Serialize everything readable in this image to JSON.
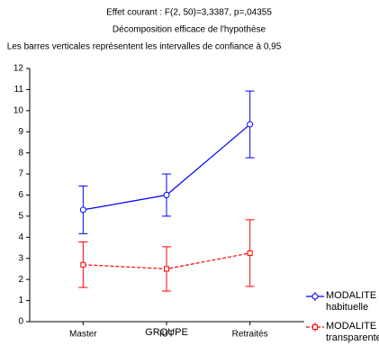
{
  "chart_data": {
    "type": "line",
    "title": "Effet courant : F(2, 50)=3,3387, p=,04355",
    "subtitle": "Décomposition efficace de l'hypothèse",
    "annotation": "Les barres verticales représentent les intervalles de confiance à 0,95",
    "x_label": "GROUPE",
    "categories": [
      "Master",
      "IUT",
      "Retraités"
    ],
    "series": [
      {
        "name": "MODALITE habituelle",
        "color": "#0000ff",
        "dashed": false,
        "marker": "circle",
        "values": [
          5.3,
          6.0,
          9.35
        ],
        "errors": [
          1.13,
          1.0,
          1.58
        ]
      },
      {
        "name": "MODALITE transparente",
        "color": "#ff0000",
        "dashed": true,
        "marker": "square",
        "values": [
          2.7,
          2.5,
          3.25
        ],
        "errors": [
          1.08,
          1.05,
          1.58
        ]
      }
    ],
    "ylim": [
      0,
      12
    ],
    "yticks": [
      0,
      1,
      2,
      3,
      4,
      5,
      6,
      7,
      8,
      9,
      10,
      11,
      12
    ],
    "legend": "bottom-right"
  }
}
